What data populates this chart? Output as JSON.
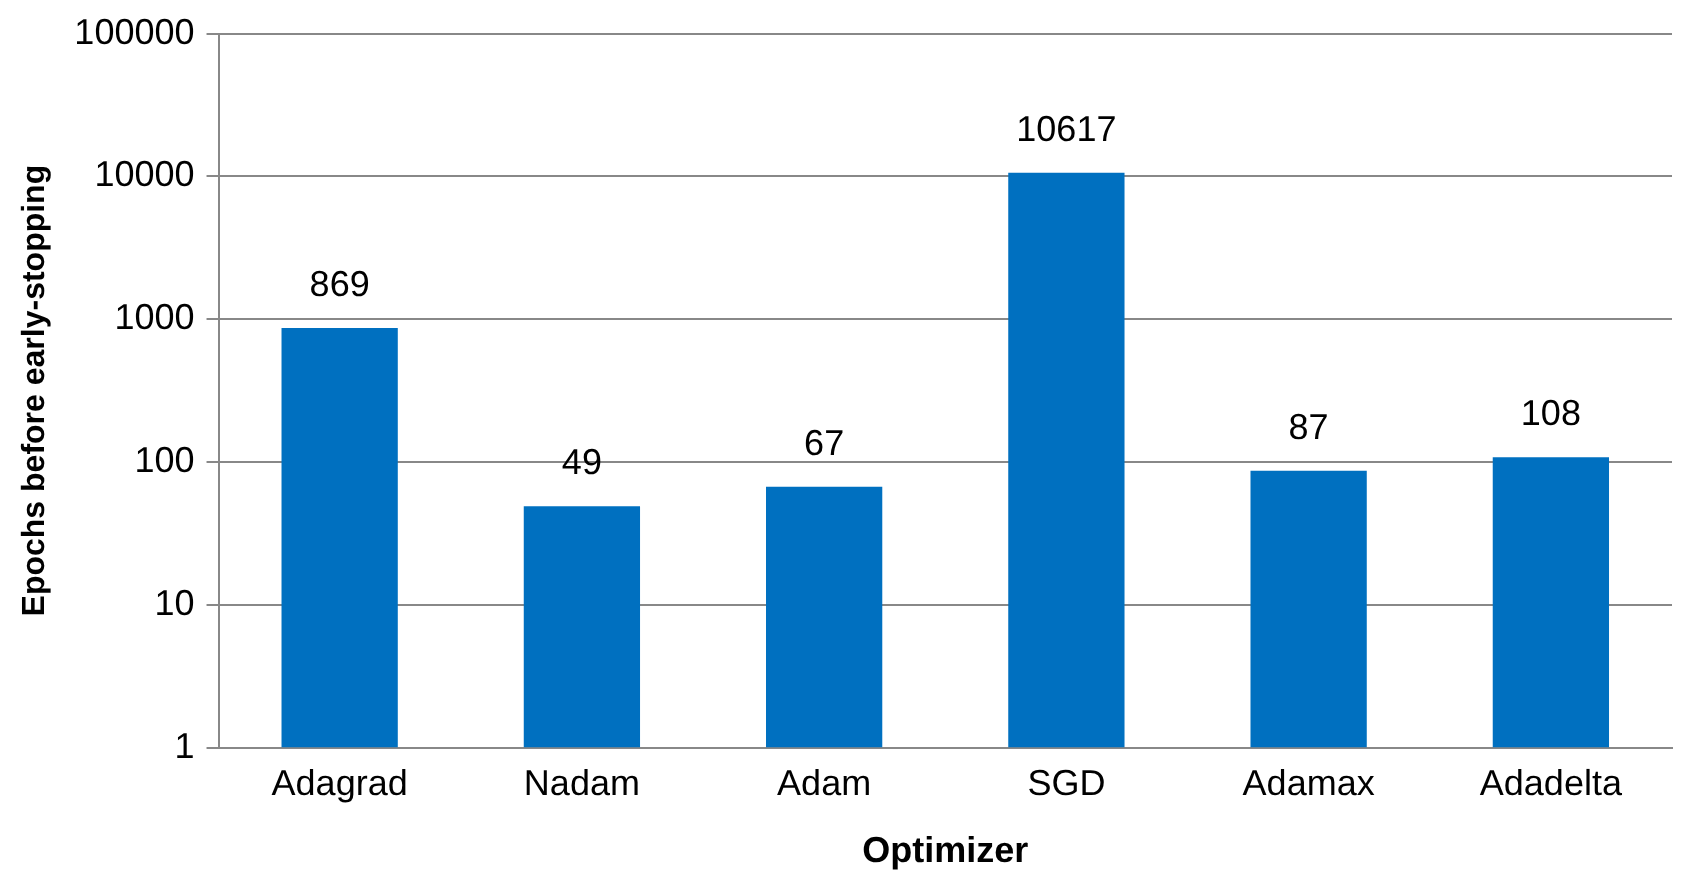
{
  "chart_data": {
    "type": "bar",
    "xlabel": "Optimizer",
    "ylabel": "Epochs before early-stopping",
    "categories": [
      "Adagrad",
      "Nadam",
      "Adam",
      "SGD",
      "Adamax",
      "Adadelta"
    ],
    "values": [
      869,
      49,
      67,
      10617,
      87,
      108
    ],
    "color": "#0070c0",
    "log": "y",
    "ylim": [
      1,
      100000
    ],
    "yticks": [
      1,
      10,
      100,
      1000,
      10000,
      100000
    ],
    "grid": "y",
    "data_labels": true,
    "legend": false
  }
}
